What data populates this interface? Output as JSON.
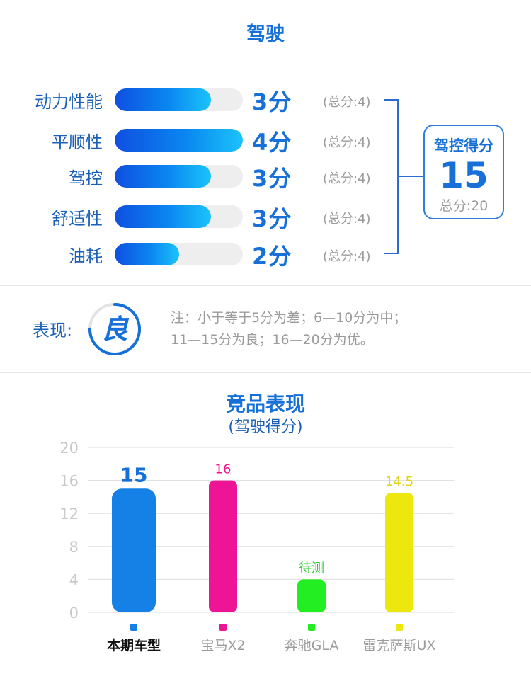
{
  "section": {
    "title": "驾驶"
  },
  "metrics": [
    {
      "label": "动力性能",
      "score_text": "3分",
      "score": 3,
      "max": 4,
      "total_text": "(总分:4)"
    },
    {
      "label": "平顺性",
      "score_text": "4分",
      "score": 4,
      "max": 4,
      "total_text": "(总分:4)"
    },
    {
      "label": "驾控",
      "score_text": "3分",
      "score": 3,
      "max": 4,
      "total_text": "(总分:4)"
    },
    {
      "label": "舒适性",
      "score_text": "3分",
      "score": 3,
      "max": 4,
      "total_text": "(总分:4)"
    },
    {
      "label": "油耗",
      "score_text": "2分",
      "score": 2,
      "max": 4,
      "total_text": "(总分:4)"
    }
  ],
  "summary": {
    "title": "驾控得分",
    "score": "15",
    "total": "总分:20"
  },
  "performance": {
    "label": "表现:",
    "grade": "良",
    "grade_fraction": 0.75,
    "note_line1": "注：小于等于5分为差；6—10分为中；",
    "note_line2": "11—15分为良；16—20分为优。"
  },
  "colors": {
    "accent": "#1670d8",
    "bar_gradient_start": "#0f4fe0",
    "bar_gradient_end": "#1cc3fb"
  },
  "chart_data": {
    "type": "bar",
    "title": "竞品表现",
    "subtitle": "(驾驶得分)",
    "categories": [
      "本期车型",
      "宝马X2",
      "奔驰GLA",
      "雷克萨斯UX"
    ],
    "values": [
      15,
      16,
      4,
      14.5
    ],
    "data_labels": [
      "15",
      "16",
      "待测",
      "14.5"
    ],
    "colors": [
      "#1580e6",
      "#ee1496",
      "#22ee22",
      "#ece80e"
    ],
    "ylim": [
      0,
      20
    ],
    "yticks": [
      0,
      4,
      8,
      12,
      16,
      20
    ],
    "grid": true,
    "legend": "bottom"
  }
}
